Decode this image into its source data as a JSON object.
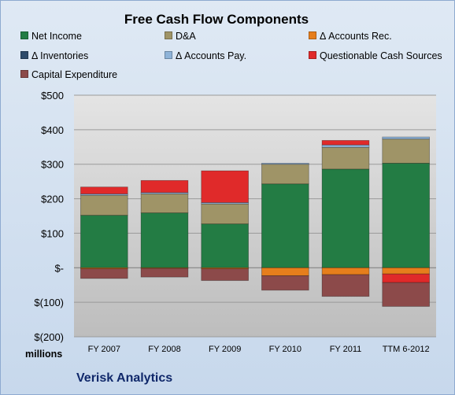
{
  "chart_data": {
    "type": "bar",
    "stacked": true,
    "title": "Free Cash Flow Components",
    "categories": [
      "FY 2007",
      "FY 2008",
      "FY 2009",
      "FY 2010",
      "FY 2011",
      "TTM 6-2012"
    ],
    "series": [
      {
        "name": "Net Income",
        "color": "#237c44",
        "values": [
          152,
          159,
          127,
          243,
          286,
          303
        ]
      },
      {
        "name": "D&A",
        "color": "#9f9467",
        "values": [
          58,
          55,
          58,
          57,
          63,
          70
        ]
      },
      {
        "name": "Δ Accounts Rec.",
        "color": "#e67e1c",
        "values": [
          -3,
          -2,
          -3,
          -23,
          -20,
          -18
        ]
      },
      {
        "name": "Δ Inventories",
        "color": "#2d4a6a",
        "values": [
          0,
          0,
          0,
          0,
          0,
          0
        ]
      },
      {
        "name": "Δ Accounts Pay.",
        "color": "#8eb3d8",
        "values": [
          4,
          4,
          4,
          3,
          7,
          6
        ]
      },
      {
        "name": "Questionable Cash Sources",
        "color": "#e02a2a",
        "values": [
          20,
          35,
          92,
          0,
          13,
          -25
        ]
      },
      {
        "name": "Capital Expenditure",
        "color": "#8c4a4a",
        "values": [
          -28,
          -25,
          -34,
          -42,
          -63,
          -69
        ]
      }
    ],
    "yticks": [
      -200,
      -100,
      0,
      100,
      200,
      300,
      400,
      500
    ],
    "ytick_labels": [
      "$(200)",
      "$(100)",
      "$-",
      "$100",
      "$200",
      "$300",
      "$400",
      "$500"
    ],
    "ylim": [
      -200,
      500
    ],
    "yunit": "millions",
    "legend_position": "top"
  },
  "footer": {
    "company": "Verisk Analytics"
  }
}
